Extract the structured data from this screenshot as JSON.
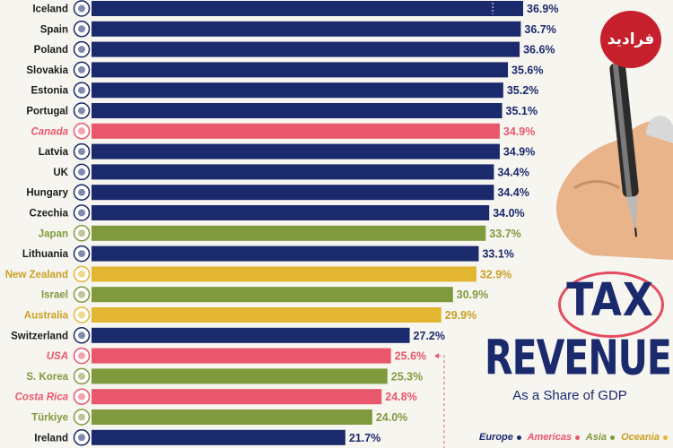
{
  "title": {
    "line1": "TAX",
    "line2": "REVENUE",
    "subtitle": "As a Share of GDP"
  },
  "logo_text": "فرادید",
  "legend": [
    {
      "label": "Europe",
      "color": "#1a2a6c"
    },
    {
      "label": "Americas",
      "color": "#e8576b"
    },
    {
      "label": "Asia",
      "color": "#7f9a3c"
    },
    {
      "label": "Oceania",
      "color": "#e2b631"
    }
  ],
  "colors": {
    "Europe": "#1a2a6c",
    "Americas": "#e8576b",
    "Asia": "#7f9a3c",
    "Oceania": "#e2b631"
  },
  "chart_data": {
    "type": "bar",
    "orientation": "horizontal",
    "unit": "%",
    "categories": [
      "Iceland",
      "Spain",
      "Poland",
      "Slovakia",
      "Estonia",
      "Portugal",
      "Canada",
      "Latvia",
      "UK",
      "Hungary",
      "Czechia",
      "Japan",
      "Lithuania",
      "New Zealand",
      "Israel",
      "Australia",
      "Switzerland",
      "USA",
      "S. Korea",
      "Costa Rica",
      "Türkiye",
      "Ireland"
    ],
    "values": [
      36.9,
      36.7,
      36.6,
      35.6,
      35.2,
      35.1,
      34.9,
      34.9,
      34.4,
      34.4,
      34.0,
      33.7,
      33.1,
      32.9,
      30.9,
      29.9,
      27.2,
      25.6,
      25.3,
      24.8,
      24.0,
      21.7
    ],
    "labels": [
      "36.9%",
      "36.7%",
      "36.6%",
      "35.6%",
      "35.2%",
      "35.1%",
      "34.9%",
      "34.9%",
      "34.4%",
      "34.4%",
      "34.0%",
      "33.7%",
      "33.1%",
      "32.9%",
      "30.9%",
      "29.9%",
      "27.2%",
      "25.6%",
      "25.3%",
      "24.8%",
      "24.0%",
      "21.7%"
    ],
    "regions": [
      "Europe",
      "Europe",
      "Europe",
      "Europe",
      "Europe",
      "Europe",
      "Americas",
      "Europe",
      "Europe",
      "Europe",
      "Europe",
      "Asia",
      "Europe",
      "Oceania",
      "Asia",
      "Oceania",
      "Europe",
      "Americas",
      "Asia",
      "Americas",
      "Asia",
      "Europe"
    ]
  }
}
